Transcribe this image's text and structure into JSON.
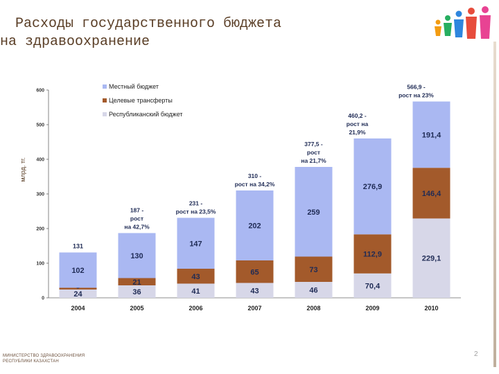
{
  "title": {
    "line1": "Расходы государственного бюджета",
    "line2": "на здравоохранение"
  },
  "footer": {
    "line1": "МИНИСТЕРСТВО ЗДРАВООХРАНЕНИЯ",
    "line2": "РЕСПУБЛИКИ КАЗАХСТАН"
  },
  "page_number": "2",
  "chart_data": {
    "type": "bar",
    "stacked": true,
    "ylabel": "млрд. тг.",
    "ylim": [
      0,
      600
    ],
    "yticks": [
      "0",
      "100",
      "200",
      "300",
      "400",
      "500",
      "600"
    ],
    "categories": [
      "2004",
      "2005",
      "2006",
      "2007",
      "2008",
      "2009",
      "2010"
    ],
    "series": [
      {
        "name": "Республиканский бюджет",
        "values": [
          24,
          36,
          41,
          43,
          46,
          70.4,
          229.1
        ],
        "labels": [
          "24",
          "36",
          "41",
          "43",
          "46",
          "70,4",
          "229,1"
        ],
        "color": "#d7d7e8"
      },
      {
        "name": "Целевые трансферты",
        "values": [
          5,
          21,
          43,
          65,
          73,
          112.9,
          146.4
        ],
        "labels": [
          "5",
          "21",
          "43",
          "65",
          "73",
          "112,9",
          "146,4"
        ],
        "color": "#a35a2b"
      },
      {
        "name": "Местный бюджет",
        "values": [
          102,
          130,
          147,
          202,
          259,
          276.9,
          191.4
        ],
        "labels": [
          "102",
          "130",
          "147",
          "202",
          "259",
          "276,9",
          "191,4"
        ],
        "color": "#aab8f2"
      }
    ],
    "legend_order": [
      "Местный бюджет",
      "Целевые трансферты",
      "Республиканский бюджет"
    ],
    "legend_position": "top-left",
    "totals": [
      {
        "category": "2004",
        "lines": [
          "131"
        ]
      },
      {
        "category": "2005",
        "lines": [
          "187 -",
          "рост",
          "на 42,7%"
        ]
      },
      {
        "category": "2006",
        "lines": [
          "231 -",
          "рост на 23,5%"
        ]
      },
      {
        "category": "2007",
        "lines": [
          "310 -",
          "рост на 34,2%"
        ]
      },
      {
        "category": "2008",
        "lines": [
          "377,5 -",
          "рост",
          "на 21,7%"
        ]
      },
      {
        "category": "2009",
        "lines": [
          "460,2 -",
          "рост на",
          "21,9%"
        ]
      },
      {
        "category": "2010",
        "lines": [
          "566,9 -",
          "рост на 23%"
        ]
      }
    ]
  }
}
